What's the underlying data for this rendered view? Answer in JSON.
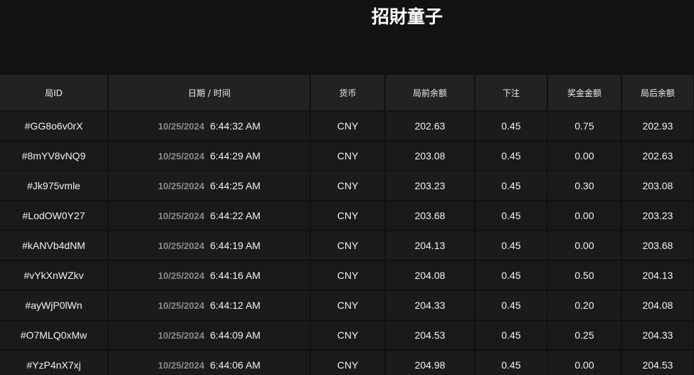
{
  "header": {
    "title": "招財童子"
  },
  "table": {
    "columns": [
      "局ID",
      "日期 / 时间",
      "货币",
      "局前余额",
      "下注",
      "奖金金额",
      "局后余额"
    ],
    "rows": [
      {
        "id": "#GG8o6v0rX",
        "date": "10/25/2024",
        "time": "6:44:32 AM",
        "currency": "CNY",
        "before": "202.63",
        "bet": "0.45",
        "win": "0.75",
        "after": "202.93"
      },
      {
        "id": "#8mYV8vNQ9",
        "date": "10/25/2024",
        "time": "6:44:29 AM",
        "currency": "CNY",
        "before": "203.08",
        "bet": "0.45",
        "win": "0.00",
        "after": "202.63"
      },
      {
        "id": "#Jk975vmle",
        "date": "10/25/2024",
        "time": "6:44:25 AM",
        "currency": "CNY",
        "before": "203.23",
        "bet": "0.45",
        "win": "0.30",
        "after": "203.08"
      },
      {
        "id": "#LodOW0Y27",
        "date": "10/25/2024",
        "time": "6:44:22 AM",
        "currency": "CNY",
        "before": "203.68",
        "bet": "0.45",
        "win": "0.00",
        "after": "203.23"
      },
      {
        "id": "#kANVb4dNM",
        "date": "10/25/2024",
        "time": "6:44:19 AM",
        "currency": "CNY",
        "before": "204.13",
        "bet": "0.45",
        "win": "0.00",
        "after": "203.68"
      },
      {
        "id": "#vYkXnWZkv",
        "date": "10/25/2024",
        "time": "6:44:16 AM",
        "currency": "CNY",
        "before": "204.08",
        "bet": "0.45",
        "win": "0.50",
        "after": "204.13"
      },
      {
        "id": "#ayWjP0lWn",
        "date": "10/25/2024",
        "time": "6:44:12 AM",
        "currency": "CNY",
        "before": "204.33",
        "bet": "0.45",
        "win": "0.20",
        "after": "204.08"
      },
      {
        "id": "#O7MLQ0xMw",
        "date": "10/25/2024",
        "time": "6:44:09 AM",
        "currency": "CNY",
        "before": "204.53",
        "bet": "0.45",
        "win": "0.25",
        "after": "204.33"
      },
      {
        "id": "#YzP4nX7xj",
        "date": "10/25/2024",
        "time": "6:44:06 AM",
        "currency": "CNY",
        "before": "204.98",
        "bet": "0.45",
        "win": "0.00",
        "after": "204.53"
      }
    ]
  }
}
